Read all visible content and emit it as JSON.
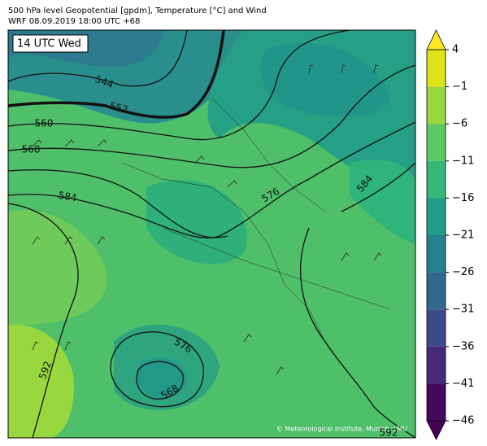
{
  "header": {
    "title": "500 hPa level Geopotential [gpdm], Temperature [°C] and Wind",
    "subtitle": "WRF 08.09.2019 18:00 UTC +68"
  },
  "map": {
    "time_label": "14 UTC Wed",
    "credit": "© Meteorological Institute, Munich, LMU",
    "contour_labels": [
      544,
      552,
      560,
      568,
      584,
      576,
      584,
      592,
      576,
      568,
      592
    ]
  },
  "colorbar": {
    "ticks": [
      4,
      {
        "value": -1,
        "label": "−1"
      },
      {
        "value": -6,
        "label": "−6"
      },
      {
        "value": -11,
        "label": "−11"
      },
      {
        "value": -16,
        "label": "−16"
      },
      {
        "value": -21,
        "label": "−21"
      },
      {
        "value": -26,
        "label": "−26"
      },
      {
        "value": -31,
        "label": "−31"
      },
      {
        "value": -36,
        "label": "−36"
      },
      {
        "value": -41,
        "label": "−41"
      },
      {
        "value": -46,
        "label": "−46"
      }
    ],
    "colors": [
      "#dde318",
      "#98d83e",
      "#5ec962",
      "#35b779",
      "#1f9e89",
      "#26828e",
      "#31688e",
      "#3e4989",
      "#482878",
      "#46085c"
    ],
    "over_color": "#fde725",
    "under_color": "#440154"
  }
}
